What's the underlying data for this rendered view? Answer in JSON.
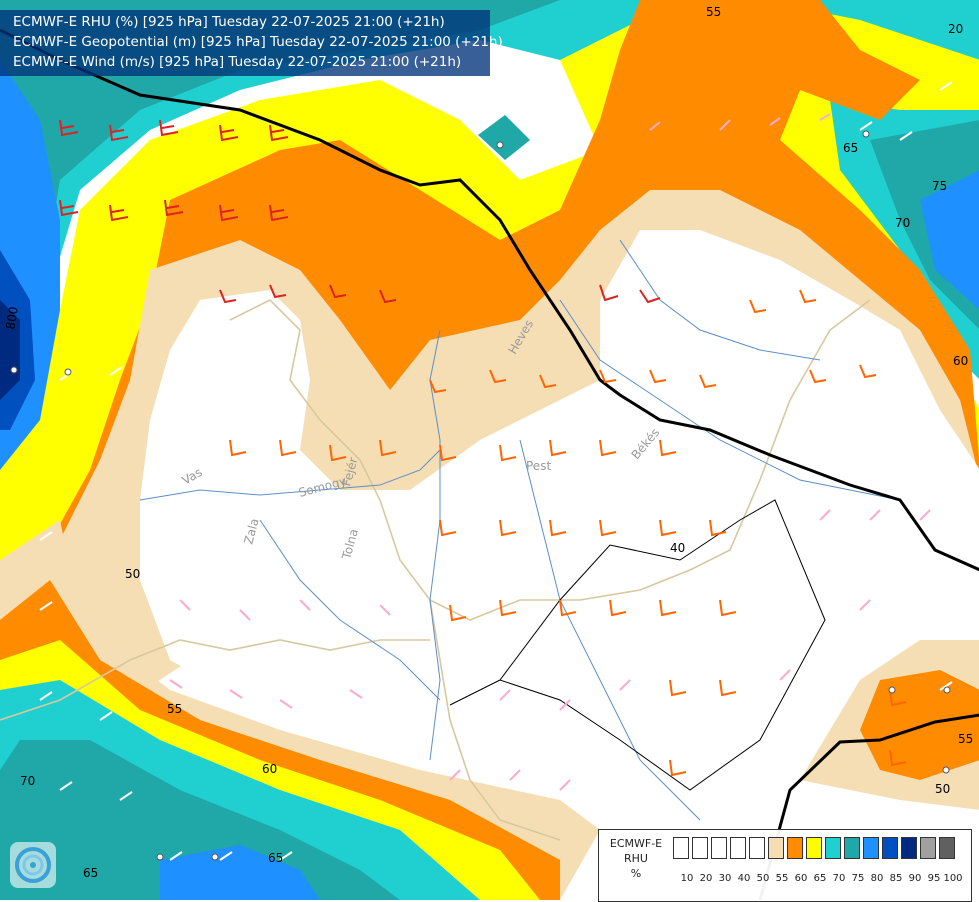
{
  "titles": [
    "ECMWF-E RHU (%) [925 hPa] Tuesday 22-07-2025 21:00 (+21h)",
    "ECMWF-E Geopotential (m) [925 hPa] Tuesday 22-07-2025 21:00 (+21h)",
    "ECMWF-E Wind (m/s) [925 hPa] Tuesday 22-07-2025 21:00 (+21h)"
  ],
  "legend": {
    "title_line1": "ECMWF-E",
    "title_line2": "RHU",
    "unit": "%",
    "levels": [
      "10",
      "20",
      "30",
      "40",
      "50",
      "55",
      "60",
      "65",
      "70",
      "75",
      "80",
      "85",
      "90",
      "95",
      "100"
    ],
    "colors": [
      "#ffffff",
      "#ffffff",
      "#ffffff",
      "#ffffff",
      "#ffffff",
      "#f5deb3",
      "#ff8c00",
      "#ffff00",
      "#20d0d0",
      "#20a8a8",
      "#1e90ff",
      "#0050c0",
      "#002a80",
      "#a0a0a0",
      "#606060"
    ]
  },
  "contour_labels": [
    "55",
    "65",
    "75",
    "70",
    "60",
    "50",
    "40",
    "55",
    "50",
    "55",
    "60",
    "70",
    "65",
    "20",
    "65"
  ],
  "geopotential_label": "800",
  "place_labels": [
    "Heves",
    "Pest",
    "Békés",
    "Vas",
    "Somogy",
    "Fejér",
    "Zala",
    "Tolna"
  ],
  "palette": {
    "orange": "#ff8c00",
    "tan": "#f5deb3",
    "yellow": "#ffff00",
    "cyan": "#20d0d0",
    "teal": "#20a8a8",
    "blue": "#1e90ff",
    "dark_blue": "#0050c0",
    "navy": "#002a80"
  },
  "logo_icon": "ecmwf-swirl-icon"
}
